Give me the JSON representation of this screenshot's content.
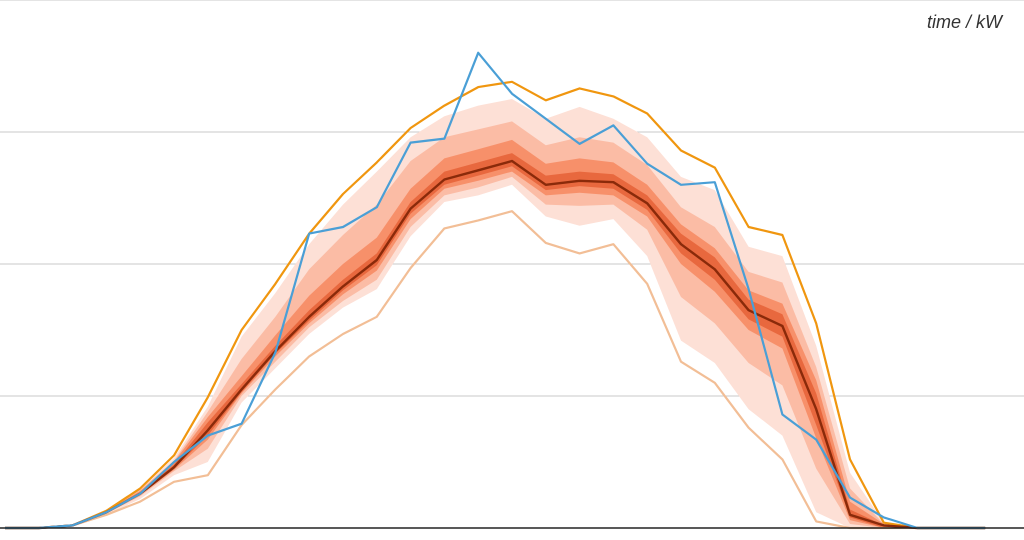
{
  "chart_data": {
    "type": "area",
    "unit_label": "time / kW",
    "x": [
      0,
      1,
      2,
      3,
      4,
      5,
      6,
      7,
      8,
      9,
      10,
      11,
      12,
      13,
      14,
      15,
      16,
      17,
      18,
      19,
      20,
      21,
      22,
      23,
      24,
      25,
      26,
      27,
      28,
      29
    ],
    "ylim": [
      0,
      4
    ],
    "yticks": [
      0,
      1,
      2,
      3,
      4
    ],
    "grid": true,
    "median": {
      "name": "",
      "color": "#8a2a0a",
      "values": [
        0,
        0,
        0.02,
        0.12,
        0.26,
        0.46,
        0.74,
        1.05,
        1.34,
        1.6,
        1.83,
        2.03,
        2.42,
        2.64,
        2.71,
        2.78,
        2.6,
        2.63,
        2.62,
        2.46,
        2.15,
        1.96,
        1.65,
        1.53,
        0.9,
        0.1,
        0.02,
        0,
        0,
        0
      ]
    },
    "upper_bound": {
      "name": "",
      "color": "#f0960f",
      "values": [
        0,
        0,
        0.02,
        0.13,
        0.3,
        0.55,
        0.99,
        1.5,
        1.85,
        2.23,
        2.53,
        2.77,
        3.03,
        3.2,
        3.34,
        3.38,
        3.24,
        3.33,
        3.27,
        3.14,
        2.86,
        2.73,
        2.28,
        2.22,
        1.55,
        0.52,
        0.04,
        0,
        0,
        0
      ]
    },
    "lower_bound": {
      "name": "",
      "color": "#f2be96",
      "values": [
        0,
        0,
        0.02,
        0.1,
        0.2,
        0.35,
        0.4,
        0.78,
        1.05,
        1.3,
        1.47,
        1.6,
        1.97,
        2.27,
        2.33,
        2.4,
        2.16,
        2.08,
        2.15,
        1.85,
        1.26,
        1.1,
        0.76,
        0.52,
        0.05,
        0,
        0,
        0,
        0,
        0
      ]
    },
    "observed": {
      "name": "",
      "color": "#4a9fd6",
      "values": [
        0,
        0,
        0.02,
        0.12,
        0.26,
        0.5,
        0.7,
        0.79,
        1.33,
        2.23,
        2.28,
        2.43,
        2.92,
        2.95,
        3.6,
        3.29,
        3.1,
        2.91,
        3.05,
        2.76,
        2.6,
        2.62,
        1.81,
        0.86,
        0.67,
        0.23,
        0.08,
        0,
        0,
        0
      ]
    },
    "bands": [
      {
        "color": "#fde0d6",
        "lower": [
          0,
          0,
          0.02,
          0.1,
          0.22,
          0.4,
          0.5,
          0.95,
          1.21,
          1.47,
          1.67,
          1.81,
          2.21,
          2.47,
          2.52,
          2.6,
          2.36,
          2.29,
          2.34,
          2.06,
          1.42,
          1.25,
          0.9,
          0.7,
          0.12,
          0,
          0,
          0,
          0,
          0
        ],
        "upper": [
          0,
          0,
          0.02,
          0.13,
          0.3,
          0.53,
          0.92,
          1.45,
          1.78,
          2.15,
          2.45,
          2.7,
          2.96,
          3.12,
          3.2,
          3.25,
          3.1,
          3.19,
          3.1,
          2.96,
          2.66,
          2.56,
          2.13,
          2.06,
          1.38,
          0.42,
          0.04,
          0,
          0,
          0
        ]
      },
      {
        "color": "#fbbca5",
        "lower": [
          0,
          0,
          0.02,
          0.11,
          0.24,
          0.43,
          0.6,
          1.0,
          1.26,
          1.52,
          1.72,
          1.88,
          2.28,
          2.52,
          2.58,
          2.66,
          2.45,
          2.44,
          2.45,
          2.26,
          1.75,
          1.55,
          1.25,
          1.08,
          0.45,
          0.03,
          0,
          0,
          0,
          0
        ],
        "upper": [
          0,
          0,
          0.02,
          0.13,
          0.29,
          0.51,
          0.88,
          1.28,
          1.6,
          1.96,
          2.22,
          2.45,
          2.78,
          2.96,
          3.02,
          3.08,
          2.9,
          2.96,
          2.92,
          2.75,
          2.43,
          2.28,
          1.94,
          1.86,
          1.22,
          0.3,
          0.03,
          0,
          0,
          0
        ]
      },
      {
        "color": "#f7906a",
        "lower": [
          0,
          0,
          0.02,
          0.11,
          0.25,
          0.44,
          0.67,
          1.02,
          1.3,
          1.55,
          1.77,
          1.95,
          2.34,
          2.57,
          2.63,
          2.7,
          2.52,
          2.54,
          2.52,
          2.36,
          2.0,
          1.79,
          1.5,
          1.36,
          0.68,
          0.06,
          0,
          0,
          0,
          0
        ],
        "upper": [
          0,
          0,
          0.02,
          0.13,
          0.28,
          0.5,
          0.84,
          1.15,
          1.46,
          1.76,
          2.0,
          2.2,
          2.57,
          2.8,
          2.87,
          2.94,
          2.76,
          2.8,
          2.77,
          2.6,
          2.3,
          2.12,
          1.8,
          1.7,
          1.12,
          0.2,
          0.03,
          0,
          0,
          0
        ]
      },
      {
        "color": "#e8683e",
        "lower": [
          0,
          0,
          0.02,
          0.12,
          0.25,
          0.45,
          0.7,
          1.03,
          1.32,
          1.57,
          1.8,
          1.99,
          2.38,
          2.6,
          2.67,
          2.74,
          2.56,
          2.59,
          2.57,
          2.41,
          2.08,
          1.88,
          1.58,
          1.45,
          0.78,
          0.08,
          0,
          0,
          0,
          0
        ],
        "upper": [
          0,
          0,
          0.02,
          0.12,
          0.27,
          0.48,
          0.8,
          1.09,
          1.38,
          1.65,
          1.88,
          2.08,
          2.47,
          2.7,
          2.77,
          2.84,
          2.67,
          2.7,
          2.68,
          2.52,
          2.23,
          2.05,
          1.73,
          1.62,
          1.02,
          0.14,
          0.02,
          0,
          0,
          0
        ]
      }
    ]
  }
}
